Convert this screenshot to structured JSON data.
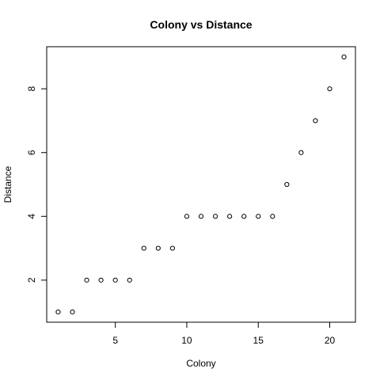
{
  "chart_data": {
    "type": "scatter",
    "title": "Colony vs Distance",
    "xlabel": "Colony",
    "ylabel": "Distance",
    "xlim": [
      0.2,
      21.8
    ],
    "ylim": [
      0.68,
      9.32
    ],
    "xticks": [
      5,
      10,
      15,
      20
    ],
    "yticks": [
      2,
      4,
      6,
      8
    ],
    "grid": false,
    "marker": "open-circle",
    "series": [
      {
        "x": [
          1,
          2,
          3,
          4,
          5,
          6,
          7,
          8,
          9,
          10,
          11,
          12,
          13,
          14,
          15,
          16,
          17,
          18,
          19,
          20,
          21
        ],
        "y": [
          1,
          1,
          2,
          2,
          2,
          2,
          3,
          3,
          3,
          4,
          4,
          4,
          4,
          4,
          4,
          4,
          5,
          6,
          7,
          8,
          9
        ]
      }
    ]
  },
  "colors": {
    "point_stroke": "#000000",
    "axis": "#000000",
    "background": "#ffffff"
  }
}
